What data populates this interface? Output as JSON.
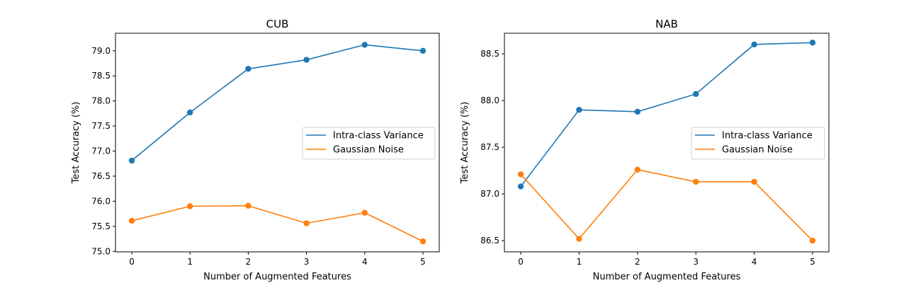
{
  "chart_data": [
    {
      "type": "line",
      "title": "CUB",
      "xlabel": "Number of Augmented Features",
      "ylabel": "Test Accuracy (%)",
      "x": [
        0,
        1,
        2,
        3,
        4,
        5
      ],
      "xticks": [
        "0",
        "1",
        "2",
        "3",
        "4",
        "5"
      ],
      "xlim": [
        -0.28,
        5.28
      ],
      "ylim": [
        74.99,
        79.35
      ],
      "yticks": [
        "75.0",
        "75.5",
        "76.0",
        "76.5",
        "77.0",
        "77.5",
        "78.0",
        "78.5",
        "79.0"
      ],
      "legend": "center-right",
      "series": [
        {
          "name": "Intra-class Variance",
          "color": "#1f77b4",
          "values": [
            76.81,
            77.77,
            78.64,
            78.82,
            79.12,
            79.0
          ]
        },
        {
          "name": "Gaussian Noise",
          "color": "#ff7f0e",
          "values": [
            75.61,
            75.9,
            75.91,
            75.56,
            75.77,
            75.2
          ]
        }
      ]
    },
    {
      "type": "line",
      "title": "NAB",
      "xlabel": "Number of Augmented Features",
      "ylabel": "Test Accuracy (%)",
      "x": [
        0,
        1,
        2,
        3,
        4,
        5
      ],
      "xticks": [
        "0",
        "1",
        "2",
        "3",
        "4",
        "5"
      ],
      "xlim": [
        -0.28,
        5.28
      ],
      "ylim": [
        86.38,
        88.72
      ],
      "yticks": [
        "86.5",
        "87.0",
        "87.5",
        "88.0",
        "88.5"
      ],
      "legend": "center-right",
      "series": [
        {
          "name": "Intra-class Variance",
          "color": "#1f77b4",
          "values": [
            87.08,
            87.9,
            87.88,
            88.07,
            88.6,
            88.62
          ]
        },
        {
          "name": "Gaussian Noise",
          "color": "#ff7f0e",
          "values": [
            87.21,
            86.52,
            87.26,
            87.13,
            87.13,
            86.5
          ]
        }
      ]
    }
  ]
}
